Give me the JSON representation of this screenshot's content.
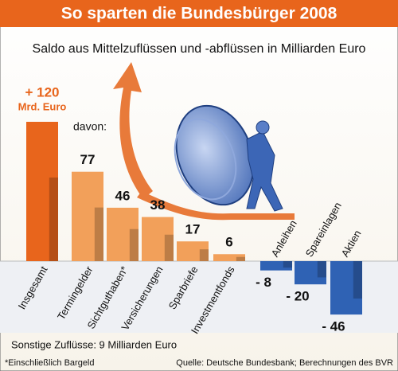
{
  "chart_data": {
    "type": "bar",
    "title": "So sparten die Bundesbürger 2008",
    "subtitle": "Saldo aus Mittelzuflüssen und -abflüssen in Milliarden Euro",
    "categories": [
      "Insgesamt",
      "Termingelder",
      "Sichtguthaben*",
      "Versicherungen",
      "Sparbriefe",
      "Investmentfonds",
      "Anleihen",
      "Spareinlagen",
      "Aktien"
    ],
    "values": [
      120,
      77,
      46,
      38,
      17,
      6,
      -8,
      -20,
      -46
    ],
    "value_labels": [
      "+ 120",
      "77",
      "46",
      "38",
      "17",
      "6",
      "- 8",
      "- 20",
      "- 46"
    ],
    "colors": [
      "#e8651c",
      "#f2a05a",
      "#f2a05a",
      "#f2a05a",
      "#f2a05a",
      "#f2a05a",
      "#2f62b4",
      "#2f62b4",
      "#2f62b4"
    ],
    "unit_label": "Mrd. Euro",
    "annotation": "davon:",
    "note": "Sonstige Zuflüsse: 9 Milliarden Euro",
    "footnote": "*Einschließlich Bargeld",
    "source": "Quelle: Deutsche Bundesbank; Berechnungen des BVR"
  }
}
